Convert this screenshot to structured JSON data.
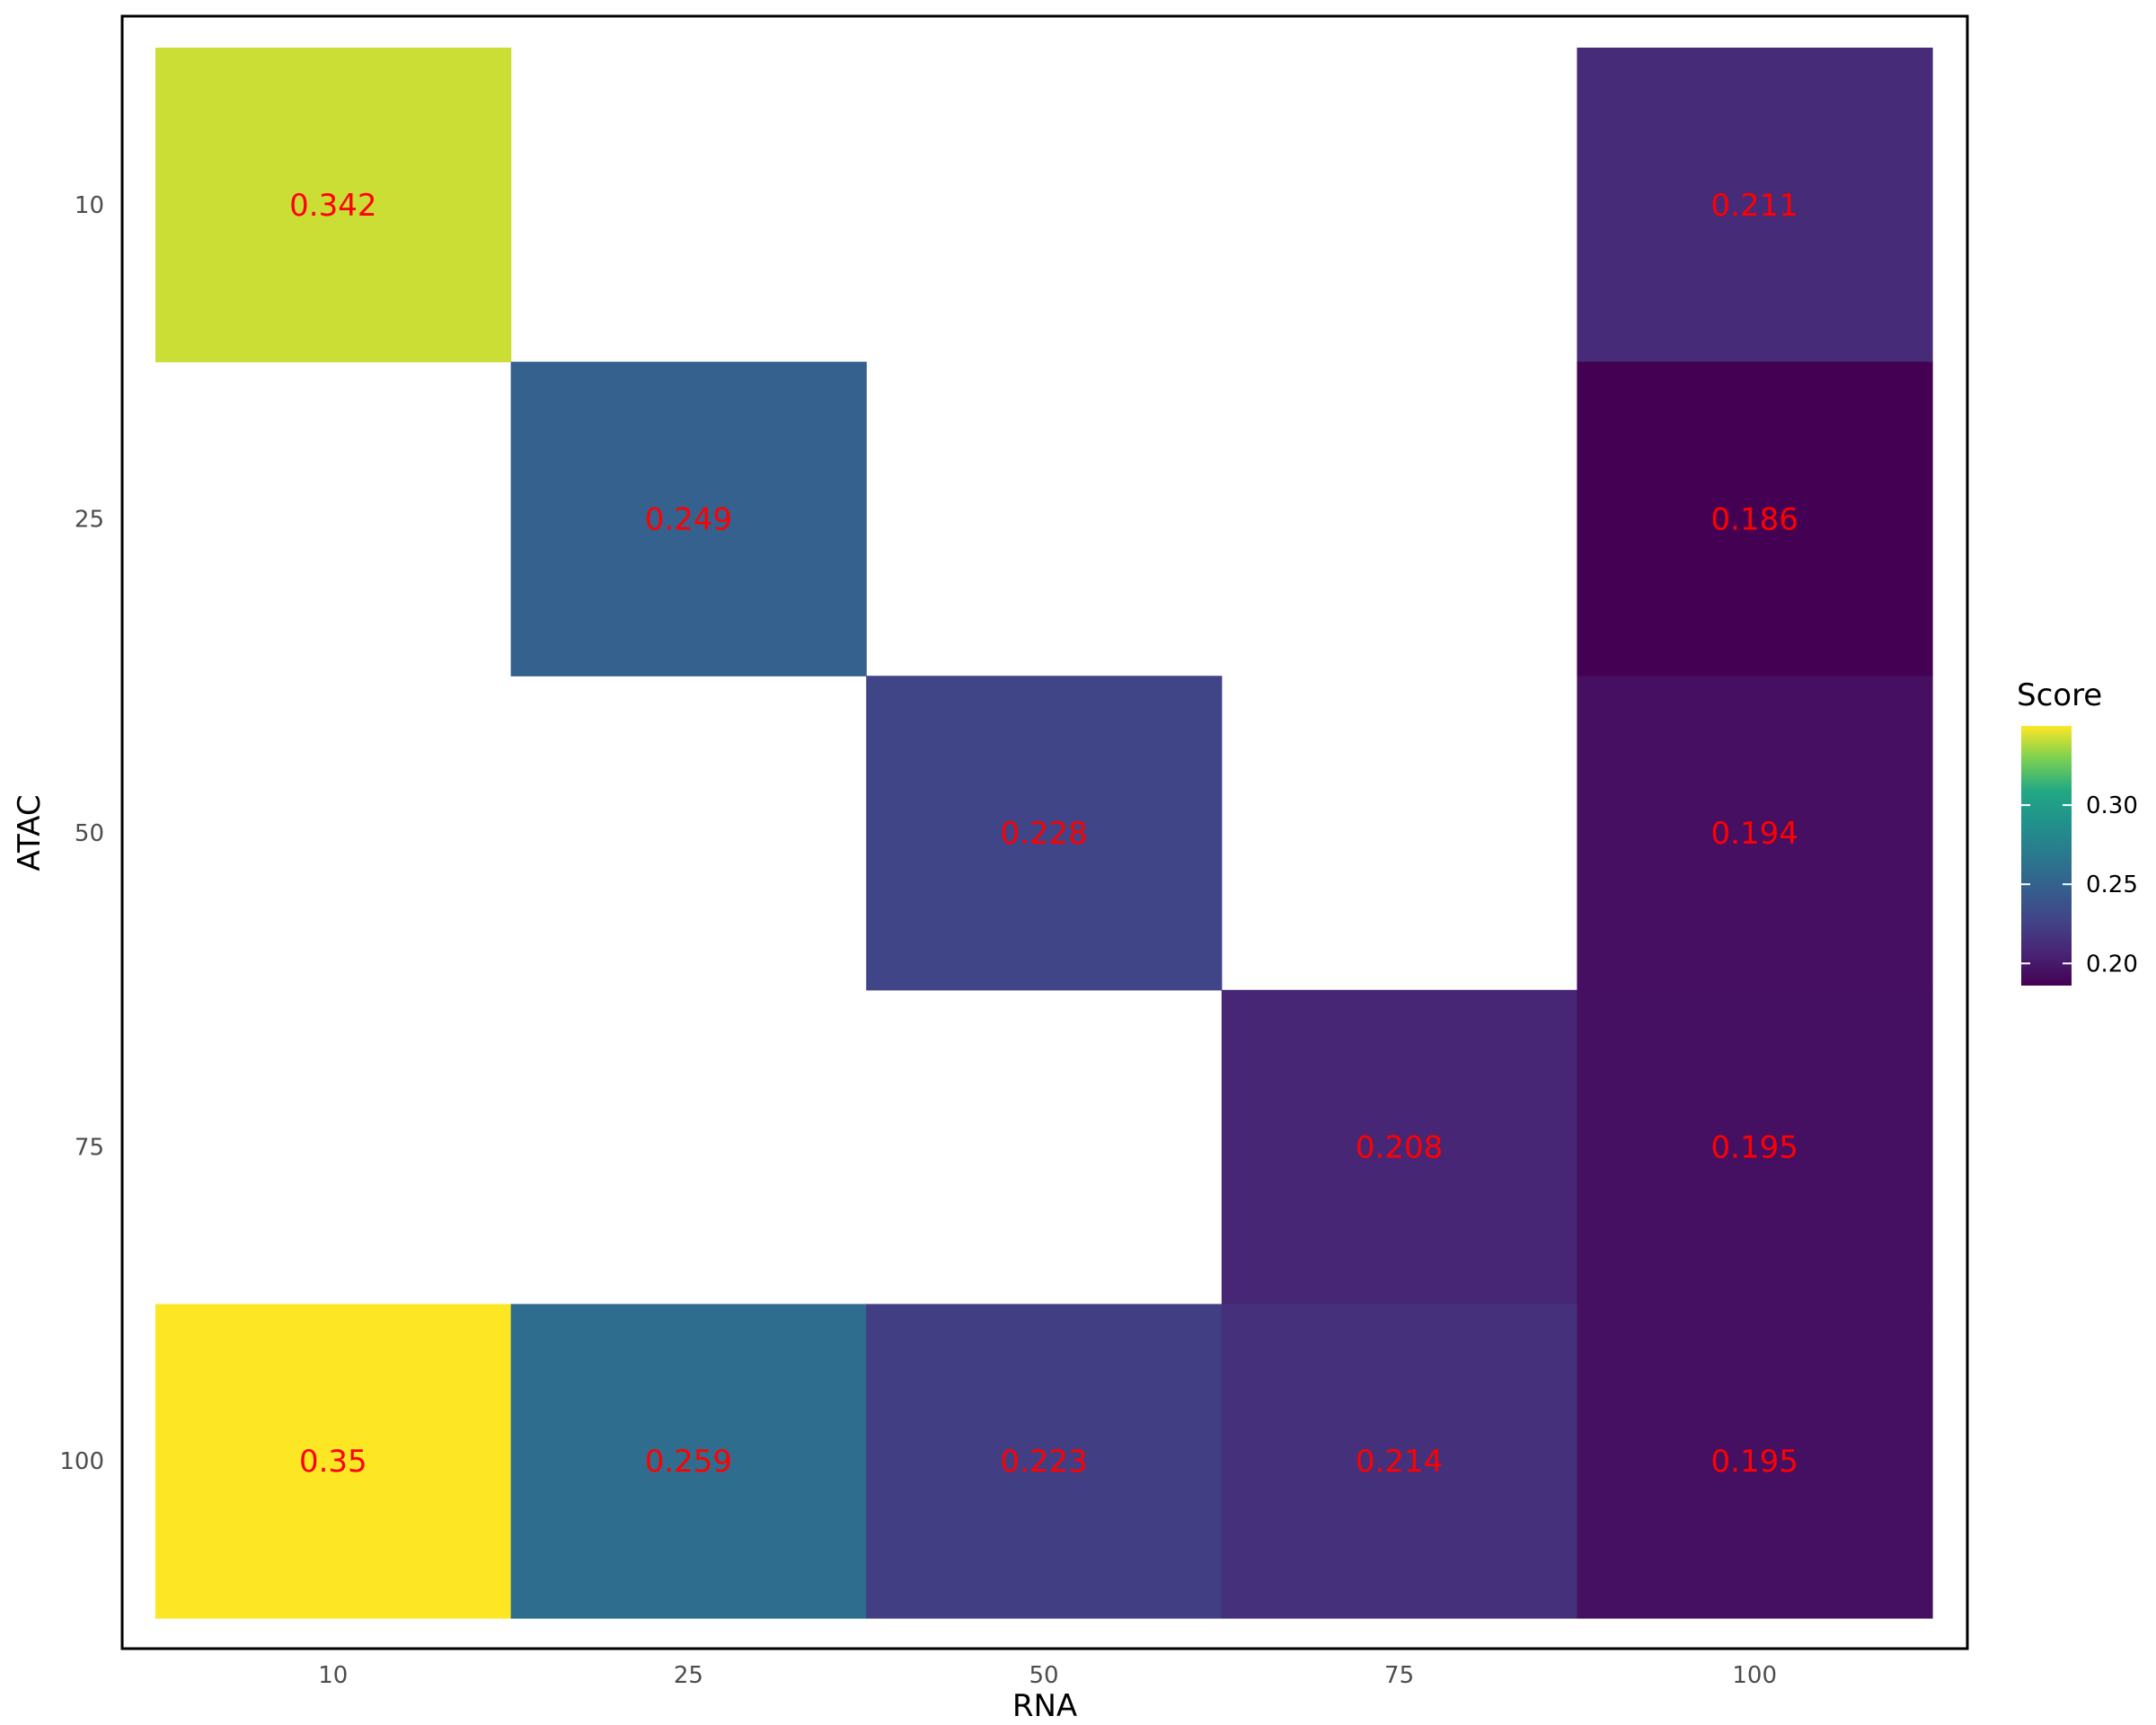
{
  "chart_data": {
    "type": "heatmap",
    "title": "",
    "xlabel": "RNA",
    "ylabel": "ATAC",
    "x_categories": [
      "10",
      "25",
      "50",
      "75",
      "100"
    ],
    "y_categories": [
      "10",
      "25",
      "50",
      "75",
      "100"
    ],
    "cells": [
      {
        "x": "10",
        "y": "10",
        "value": 0.342,
        "label": "0.342"
      },
      {
        "x": "100",
        "y": "10",
        "value": 0.211,
        "label": "0.211"
      },
      {
        "x": "25",
        "y": "25",
        "value": 0.249,
        "label": "0.249"
      },
      {
        "x": "100",
        "y": "25",
        "value": 0.186,
        "label": "0.186"
      },
      {
        "x": "50",
        "y": "50",
        "value": 0.228,
        "label": "0.228"
      },
      {
        "x": "100",
        "y": "50",
        "value": 0.194,
        "label": "0.194"
      },
      {
        "x": "75",
        "y": "75",
        "value": 0.208,
        "label": "0.208"
      },
      {
        "x": "100",
        "y": "75",
        "value": 0.195,
        "label": "0.195"
      },
      {
        "x": "10",
        "y": "100",
        "value": 0.35,
        "label": "0.35"
      },
      {
        "x": "25",
        "y": "100",
        "value": 0.259,
        "label": "0.259"
      },
      {
        "x": "50",
        "y": "100",
        "value": 0.223,
        "label": "0.223"
      },
      {
        "x": "75",
        "y": "100",
        "value": 0.214,
        "label": "0.214"
      },
      {
        "x": "100",
        "y": "100",
        "value": 0.195,
        "label": "0.195"
      }
    ],
    "label_color": "#ff0000",
    "colorscale": "viridis",
    "legend": {
      "title": "Score",
      "position": "right",
      "min": 0.186,
      "max": 0.35,
      "ticks": [
        {
          "value": 0.2,
          "label": "0.20"
        },
        {
          "value": 0.25,
          "label": "0.25"
        },
        {
          "value": 0.3,
          "label": "0.30"
        }
      ]
    },
    "grid": false,
    "panel_border": true
  }
}
